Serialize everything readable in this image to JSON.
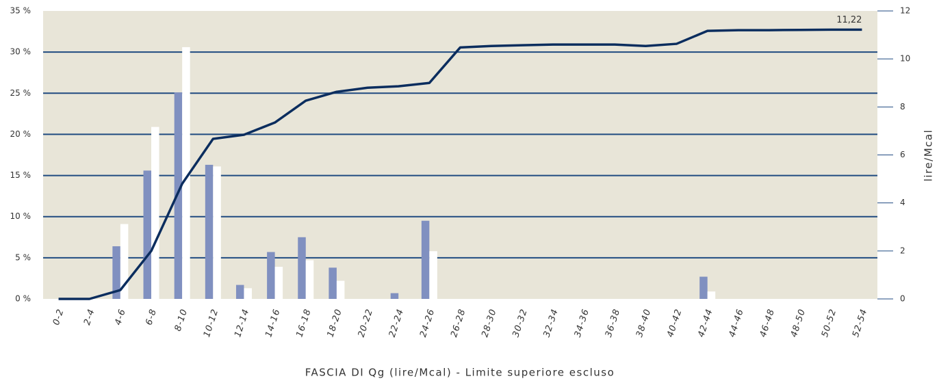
{
  "chart_data": {
    "type": "bar_line",
    "x_label": "FASCIA DI Qg (lire/Mcal) - Limite superiore escluso",
    "y2_label": "lire/Mcal",
    "categories": [
      "0-2",
      "2-4",
      "4-6",
      "6-8",
      "8-10",
      "10-12",
      "12-14",
      "14-16",
      "16-18",
      "18-20",
      "20-22",
      "22-24",
      "24-26",
      "26-28",
      "28-30",
      "30-32",
      "32-34",
      "34-36",
      "36-38",
      "38-40",
      "40-42",
      "42-44",
      "44-46",
      "46-48",
      "48-50",
      "50-52",
      "52-54"
    ],
    "series": [
      {
        "type": "bar",
        "color": "#8090c0",
        "values": [
          0,
          0,
          6.4,
          15.6,
          25.1,
          16.3,
          1.7,
          5.7,
          7.5,
          3.8,
          0,
          0.7,
          9.5,
          0,
          0,
          0,
          0,
          0,
          0,
          0,
          0,
          2.7,
          0,
          0,
          0,
          0,
          0
        ]
      },
      {
        "type": "bar",
        "color": "#ffffff",
        "values": [
          0,
          0,
          9.1,
          20.9,
          30.6,
          16.1,
          1.3,
          3.9,
          4.7,
          2.2,
          0,
          0,
          5.8,
          0,
          0,
          0,
          0,
          0,
          0,
          0,
          0,
          0.9,
          0,
          0,
          0,
          0,
          0
        ]
      },
      {
        "type": "line",
        "axis": "y2",
        "color": "#0b2d5e",
        "values": [
          0,
          0,
          0.37,
          2.0,
          4.8,
          6.67,
          6.84,
          7.35,
          8.26,
          8.63,
          8.8,
          8.86,
          9.0,
          10.48,
          10.54,
          10.57,
          10.6,
          10.6,
          10.6,
          10.54,
          10.63,
          11.17,
          11.2,
          11.2,
          11.21,
          11.22,
          11.22
        ],
        "value_labels": [
          null,
          null,
          null,
          null,
          null,
          null,
          null,
          null,
          null,
          null,
          null,
          null,
          null,
          null,
          null,
          null,
          null,
          null,
          null,
          null,
          null,
          null,
          null,
          null,
          null,
          null,
          "11,22"
        ]
      }
    ],
    "ylim": [
      0,
      35
    ],
    "yticks": [
      {
        "value": 0,
        "label": "0 %"
      },
      {
        "value": 5,
        "label": "5 %"
      },
      {
        "value": 10,
        "label": "10 %"
      },
      {
        "value": 15,
        "label": "15 %"
      },
      {
        "value": 20,
        "label": "20 %"
      },
      {
        "value": 25,
        "label": "25 %"
      },
      {
        "value": 30,
        "label": "30 %"
      },
      {
        "value": 35,
        "label": "35 %"
      }
    ],
    "y2lim": [
      0,
      12
    ],
    "y2ticks": [
      0,
      2,
      4,
      6,
      8,
      10,
      12
    ],
    "grid": true,
    "background": "#e8e5d8"
  }
}
